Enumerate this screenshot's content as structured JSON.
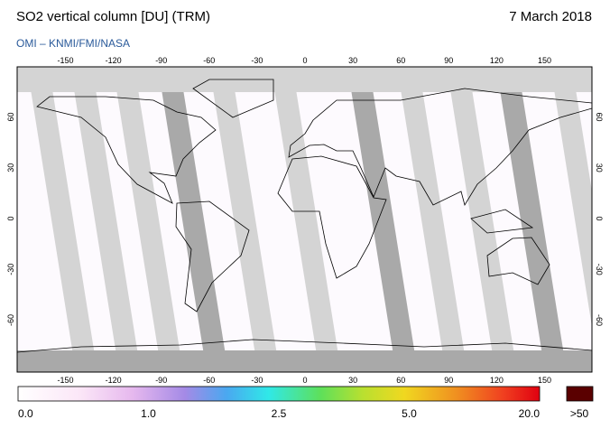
{
  "header": {
    "title": "SO2 vertical column [DU] (TRM)",
    "date": "7 March 2018",
    "credit": "OMI  –  KNMI/FMI/NASA"
  },
  "map": {
    "lon_ticks": [
      -150,
      -120,
      -90,
      -60,
      -30,
      0,
      30,
      60,
      90,
      120,
      150
    ],
    "lat_ticks": [
      60,
      30,
      0,
      -30,
      -60
    ]
  },
  "colorbar": {
    "labels": [
      "0.0",
      "1.0",
      "2.5",
      "5.0",
      "20.0"
    ],
    "overflow_label": ">50"
  }
}
